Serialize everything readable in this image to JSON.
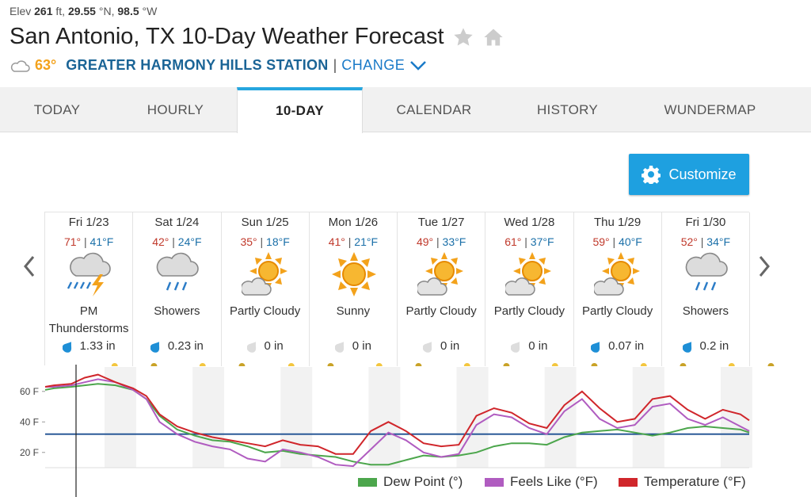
{
  "header": {
    "elev_label": "Elev",
    "elev_value": "261",
    "elev_unit": "ft,",
    "lat_value": "29.55",
    "lat_unit": "°N,",
    "lon_value": "98.5",
    "lon_unit": "°W",
    "title": "San Antonio, TX 10-Day Weather Forecast",
    "current_temp": "63°",
    "station": "GREATER HARMONY HILLS STATION",
    "separator": "|",
    "change_label": "CHANGE"
  },
  "tabs": [
    {
      "label": "TODAY",
      "active": false
    },
    {
      "label": "HOURLY",
      "active": false
    },
    {
      "label": "10-DAY",
      "active": true
    },
    {
      "label": "CALENDAR",
      "active": false
    },
    {
      "label": "HISTORY",
      "active": false
    },
    {
      "label": "WUNDERMAP",
      "active": false
    }
  ],
  "customize_label": "Customize",
  "days": [
    {
      "date": "Fri 1/23",
      "hi": "71°",
      "lo": "41°F",
      "icon": "thunderstorm-icon",
      "condition": "PM Thunderstorms",
      "precip": "1.33 in",
      "wet": true
    },
    {
      "date": "Sat 1/24",
      "hi": "42°",
      "lo": "24°F",
      "icon": "rain-icon",
      "condition": "Showers",
      "precip": "0.23 in",
      "wet": true
    },
    {
      "date": "Sun 1/25",
      "hi": "35°",
      "lo": "18°F",
      "icon": "partly-cloudy-icon",
      "condition": "Partly Cloudy",
      "precip": "0 in",
      "wet": false
    },
    {
      "date": "Mon 1/26",
      "hi": "41°",
      "lo": "21°F",
      "icon": "sunny-icon",
      "condition": "Sunny",
      "precip": "0 in",
      "wet": false
    },
    {
      "date": "Tue 1/27",
      "hi": "49°",
      "lo": "33°F",
      "icon": "partly-cloudy-icon",
      "condition": "Partly Cloudy",
      "precip": "0 in",
      "wet": false
    },
    {
      "date": "Wed 1/28",
      "hi": "61°",
      "lo": "37°F",
      "icon": "partly-cloudy-icon",
      "condition": "Partly Cloudy",
      "precip": "0 in",
      "wet": false
    },
    {
      "date": "Thu 1/29",
      "hi": "59°",
      "lo": "40°F",
      "icon": "partly-cloudy-icon",
      "condition": "Partly Cloudy",
      "precip": "0.07 in",
      "wet": true
    },
    {
      "date": "Fri 1/30",
      "hi": "52°",
      "lo": "34°F",
      "icon": "rain-icon",
      "condition": "Showers",
      "precip": "0.2 in",
      "wet": true
    }
  ],
  "colors": {
    "dew_point": "#4ca64c",
    "feels_like": "#b05cc0",
    "temperature": "#d0262b",
    "freezing_line": "#1d4f91",
    "accent": "#26a6df"
  },
  "chart_data": {
    "type": "line",
    "yticks": [
      "60 F",
      "40 F",
      "20 F"
    ],
    "ytick_values": [
      60,
      40,
      20
    ],
    "ylim": [
      10,
      76
    ],
    "xlim": [
      0,
      8
    ],
    "freezing_line": 32,
    "series": [
      {
        "name": "Dew Point (°)",
        "key": "dew_point",
        "x": [
          0,
          0.1,
          0.3,
          0.45,
          0.6,
          0.8,
          1.0,
          1.15,
          1.3,
          1.5,
          1.7,
          1.9,
          2.1,
          2.3,
          2.5,
          2.7,
          2.9,
          3.1,
          3.3,
          3.5,
          3.7,
          3.9,
          4.1,
          4.3,
          4.5,
          4.7,
          4.9,
          5.1,
          5.3,
          5.5,
          5.7,
          5.9,
          6.1,
          6.3,
          6.5,
          6.7,
          6.9,
          7.1,
          7.3,
          7.5,
          7.7,
          7.9,
          8.0
        ],
        "y": [
          61,
          62,
          63,
          64,
          65,
          64,
          61,
          55,
          44,
          35,
          31,
          28,
          27,
          24,
          20,
          21,
          19,
          18,
          17,
          14,
          12,
          12,
          15,
          18,
          17,
          18,
          20,
          24,
          26,
          26,
          25,
          30,
          33,
          34,
          35,
          33,
          31,
          33,
          36,
          37,
          36,
          35,
          33
        ]
      },
      {
        "name": "Feels Like (°F)",
        "key": "feels_like",
        "x": [
          0,
          0.1,
          0.3,
          0.45,
          0.6,
          0.8,
          1.0,
          1.15,
          1.3,
          1.5,
          1.7,
          1.9,
          2.1,
          2.3,
          2.5,
          2.7,
          2.9,
          3.1,
          3.3,
          3.5,
          3.7,
          3.9,
          4.1,
          4.3,
          4.5,
          4.7,
          4.9,
          5.1,
          5.3,
          5.5,
          5.7,
          5.9,
          6.1,
          6.3,
          6.5,
          6.7,
          6.9,
          7.1,
          7.3,
          7.5,
          7.7,
          7.9,
          8.0
        ],
        "y": [
          63,
          63,
          64,
          66,
          68,
          66,
          61,
          55,
          40,
          32,
          27,
          24,
          22,
          16,
          14,
          22,
          20,
          17,
          12,
          11,
          22,
          33,
          28,
          20,
          17,
          19,
          38,
          45,
          43,
          36,
          32,
          47,
          55,
          42,
          36,
          38,
          50,
          52,
          42,
          38,
          43,
          37,
          34
        ]
      },
      {
        "name": "Temperature (°F)",
        "key": "temperature",
        "x": [
          0,
          0.1,
          0.3,
          0.45,
          0.6,
          0.8,
          1.0,
          1.15,
          1.3,
          1.5,
          1.7,
          1.9,
          2.1,
          2.3,
          2.5,
          2.7,
          2.9,
          3.1,
          3.3,
          3.5,
          3.7,
          3.9,
          4.1,
          4.3,
          4.5,
          4.7,
          4.9,
          5.1,
          5.3,
          5.5,
          5.7,
          5.9,
          6.1,
          6.3,
          6.5,
          6.7,
          6.9,
          7.1,
          7.3,
          7.5,
          7.7,
          7.9,
          8.0
        ],
        "y": [
          63,
          64,
          65,
          69,
          71,
          66,
          62,
          57,
          45,
          37,
          33,
          30,
          28,
          26,
          24,
          28,
          25,
          24,
          19,
          19,
          34,
          40,
          34,
          26,
          24,
          25,
          44,
          49,
          46,
          39,
          36,
          51,
          60,
          49,
          40,
          42,
          55,
          57,
          48,
          42,
          48,
          45,
          41
        ]
      }
    ]
  },
  "legend": [
    {
      "label": "Dew Point (°)",
      "key": "dew_point"
    },
    {
      "label": "Feels Like (°F)",
      "key": "feels_like"
    },
    {
      "label": "Temperature (°F)",
      "key": "temperature"
    }
  ]
}
